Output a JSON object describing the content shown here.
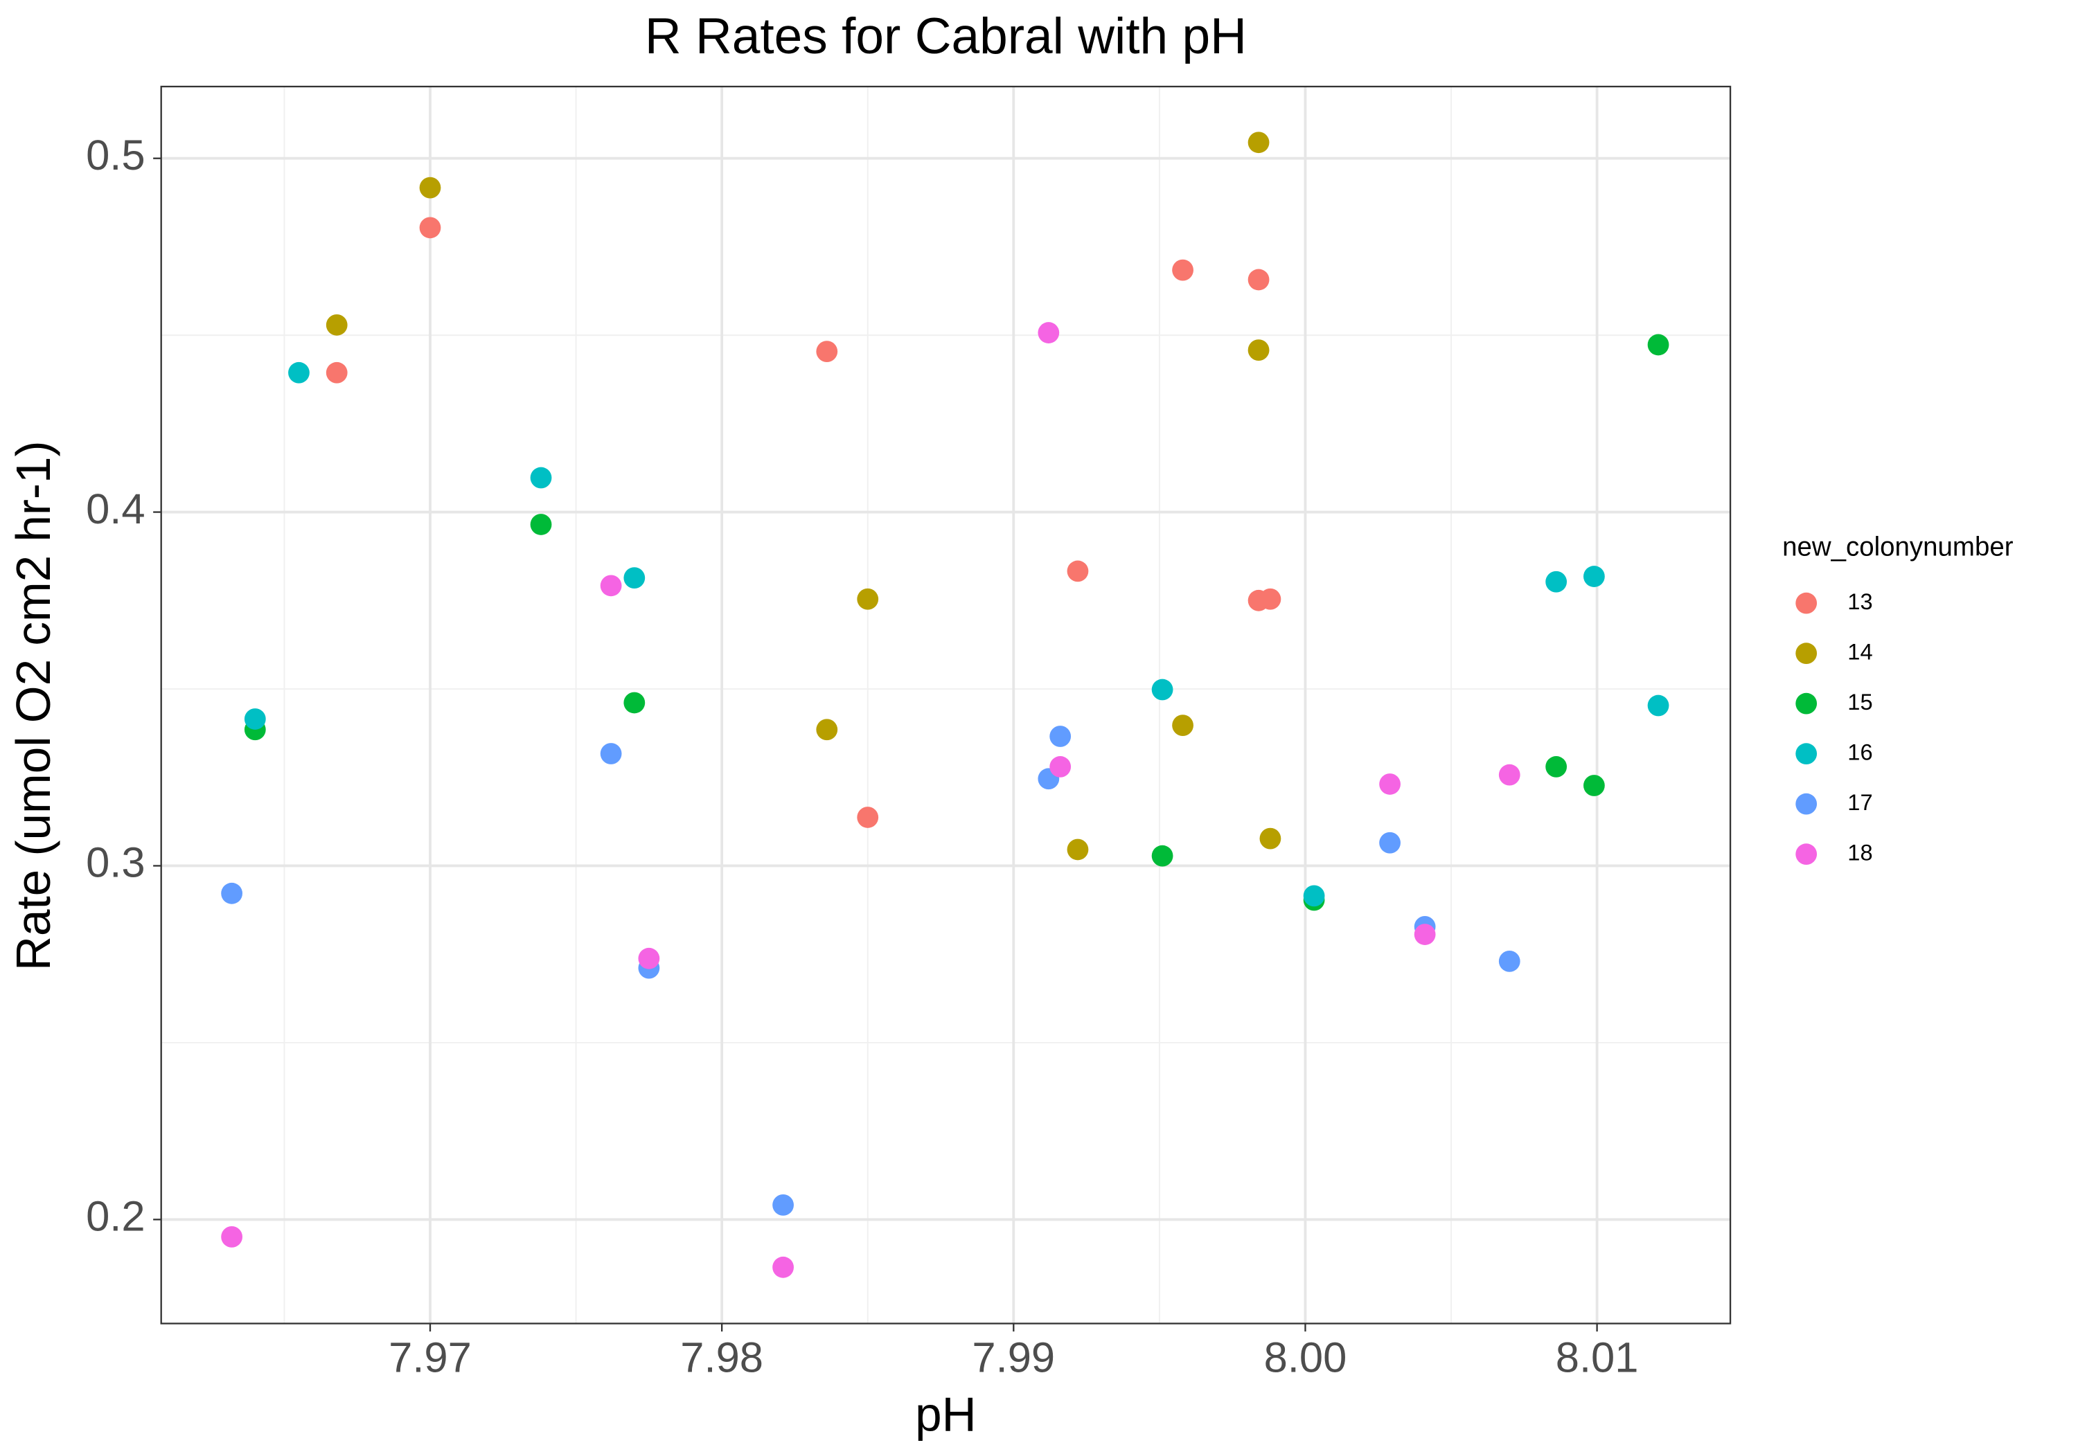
{
  "chart_data": {
    "type": "scatter",
    "title": "R Rates for Cabral with pH",
    "x_label": "pH",
    "y_label": "Rate (umol O2 cm2 hr-1)",
    "legend_title": "new_colonynumber",
    "legend_position": "right",
    "grid": true,
    "xlim": [
      7.96078,
      8.01457
    ],
    "ylim": [
      0.1706,
      0.5203
    ],
    "xticks": [
      7.97,
      7.98,
      7.99,
      {
        "value": 8,
        "label": "8.00"
      },
      8.01
    ],
    "yticks": [
      0.2,
      0.3,
      0.4,
      0.5
    ],
    "x_minor_grid": [
      7.965,
      7.975,
      7.985,
      7.995,
      8.005
    ],
    "y_minor_grid": [
      0.25,
      0.35,
      0.45
    ],
    "series": [
      {
        "name": "13",
        "color": "#F8766D",
        "x": [
          7.9668,
          7.97,
          7.9836,
          7.985,
          7.9922,
          7.9958,
          7.9984,
          7.9984,
          7.9988
        ],
        "values": [
          0.4394,
          0.4804,
          0.4454,
          0.3137,
          0.3833,
          0.4684,
          0.4657,
          0.375,
          0.3754
        ]
      },
      {
        "name": "14",
        "color": "#B79F00",
        "x": [
          7.9668,
          7.97,
          7.9836,
          7.985,
          7.9922,
          7.9958,
          7.9984,
          7.9984,
          7.9988
        ],
        "values": [
          0.4529,
          0.4917,
          0.3385,
          0.3754,
          0.3046,
          0.3397,
          0.5045,
          0.4458,
          0.3077
        ]
      },
      {
        "name": "15",
        "color": "#00BA38",
        "x": [
          7.964,
          7.9738,
          7.977,
          7.9951,
          8.0003,
          8.0086,
          8.0099,
          8.0121
        ],
        "values": [
          0.3385,
          0.3965,
          0.3461,
          0.3028,
          0.2903,
          0.328,
          0.3227,
          0.4473
        ]
      },
      {
        "name": "16",
        "color": "#00BFC4",
        "x": [
          7.964,
          7.9655,
          7.9738,
          7.977,
          7.9951,
          8.0003,
          8.0086,
          8.0099,
          8.0121
        ],
        "values": [
          0.3415,
          0.4394,
          0.4097,
          0.3814,
          0.3498,
          0.2915,
          0.3803,
          0.3818,
          0.3453
        ]
      },
      {
        "name": "17",
        "color": "#619CFF",
        "x": [
          7.9632,
          7.9762,
          7.9775,
          7.9821,
          7.9912,
          7.9916,
          8.0029,
          8.0041,
          8.007
        ],
        "values": [
          0.2922,
          0.3317,
          0.2711,
          0.2041,
          0.3246,
          0.3366,
          0.3065,
          0.2828,
          0.273
        ]
      },
      {
        "name": "18",
        "color": "#F564E3",
        "x": [
          7.9632,
          7.9762,
          7.9775,
          7.9821,
          7.9912,
          7.9916,
          8.0029,
          8.0041,
          8.007
        ],
        "values": [
          0.1951,
          0.3792,
          0.2738,
          0.1865,
          0.4507,
          0.328,
          0.3231,
          0.2806,
          0.3257
        ]
      }
    ]
  }
}
